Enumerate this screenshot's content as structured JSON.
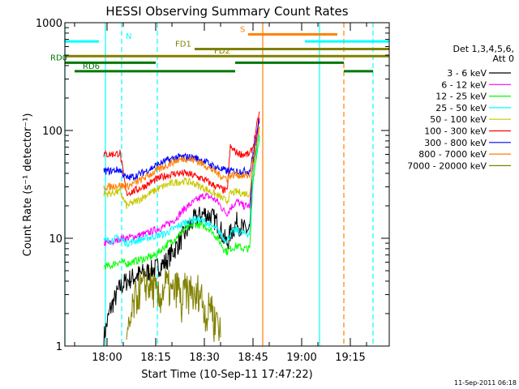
{
  "chart_data": {
    "type": "line",
    "title": "HESSI Observing Summary Count Rates",
    "xlabel": "Start Time (10-Sep-11 17:47:22)",
    "ylabel": "Count Rate (s⁻¹ detector⁻¹)",
    "y_scale": "log",
    "ylim": [
      1,
      1000
    ],
    "xlim_minutes_after_1747": [
      0,
      100
    ],
    "x_ticks": [
      "18:00",
      "18:15",
      "18:30",
      "18:45",
      "19:00",
      "19:15"
    ],
    "y_ticks": [
      "1",
      "10",
      "100",
      "1000"
    ],
    "grid": false,
    "legend_position": "right",
    "legend_header": [
      "Det 1,3,4,5,6,",
      "Att 0"
    ],
    "timestamp": "11-Sep-2011 06:18",
    "series": [
      {
        "name": "3 - 6 keV",
        "color": "#000000",
        "t": [
          12,
          14,
          16,
          17,
          19,
          22,
          25,
          28,
          31,
          34,
          37,
          40,
          43,
          45,
          47,
          48,
          49,
          50,
          51,
          53,
          55,
          57,
          58,
          60
        ],
        "y": [
          1.2,
          2.2,
          3,
          3.5,
          4,
          4.5,
          4.8,
          5.2,
          6,
          8,
          11,
          15,
          17,
          16,
          14,
          12,
          10,
          9,
          11,
          14,
          12,
          12,
          45,
          120
        ]
      },
      {
        "name": "6 - 12 keV",
        "color": "#ff00ff",
        "t": [
          12,
          14,
          16,
          17,
          19,
          22,
          25,
          28,
          31,
          34,
          37,
          40,
          43,
          45,
          47,
          48,
          49,
          50,
          51,
          53,
          55,
          57,
          58,
          60
        ],
        "y": [
          9,
          9,
          9.5,
          10,
          10,
          10.5,
          11,
          12,
          13,
          15,
          19,
          22,
          25,
          24,
          22,
          20,
          18,
          17,
          19,
          22,
          20,
          20,
          55,
          130
        ]
      },
      {
        "name": "12 - 25 keV",
        "color": "#00ff00",
        "t": [
          12,
          14,
          16,
          17,
          19,
          22,
          25,
          28,
          31,
          34,
          37,
          40,
          43,
          45,
          47,
          48,
          49,
          50,
          51,
          53,
          55,
          57,
          58,
          60
        ],
        "y": [
          5.5,
          5.5,
          6,
          6,
          5.8,
          6.2,
          6.5,
          7,
          8.5,
          10,
          12,
          13.5,
          13,
          12,
          10,
          9,
          8,
          7.5,
          8,
          8.5,
          8,
          8,
          35,
          90
        ]
      },
      {
        "name": "25 - 50 keV",
        "color": "#00ffff",
        "t": [
          12,
          14,
          16,
          17,
          19,
          22,
          25,
          28,
          31,
          34,
          37,
          40,
          43,
          45,
          47,
          48,
          49,
          50,
          51,
          53,
          55,
          57,
          58,
          60
        ],
        "y": [
          9.5,
          9.5,
          10,
          10,
          9,
          9.5,
          10,
          10.5,
          11,
          12.5,
          14,
          15,
          14.5,
          13,
          12,
          11,
          10,
          9.5,
          11,
          12,
          11,
          11,
          40,
          100
        ]
      },
      {
        "name": "50 - 100 keV",
        "color": "#c8c800",
        "t": [
          12,
          14,
          16,
          17,
          19,
          22,
          25,
          28,
          31,
          34,
          37,
          40,
          43,
          45,
          47,
          48,
          49,
          50,
          51,
          53,
          55,
          57,
          58,
          60
        ],
        "y": [
          26,
          26,
          27,
          27,
          20,
          22,
          25,
          28,
          31,
          33,
          34,
          32,
          29,
          27,
          25,
          24,
          23,
          22,
          26,
          27,
          26,
          26,
          45,
          110
        ]
      },
      {
        "name": "100 - 300 keV",
        "color": "#ff0000",
        "t": [
          12,
          14,
          16,
          17,
          19,
          22,
          25,
          28,
          31,
          34,
          37,
          40,
          43,
          45,
          47,
          48,
          49,
          50,
          51,
          53,
          55,
          57,
          58,
          60
        ],
        "y": [
          60,
          60,
          61,
          62,
          26,
          28,
          31,
          35,
          38,
          40,
          40,
          38,
          35,
          32,
          30,
          29,
          28,
          27,
          70,
          62,
          60,
          60,
          70,
          150
        ]
      },
      {
        "name": "300 - 800 keV",
        "color": "#0000ff",
        "t": [
          12,
          14,
          16,
          17,
          19,
          22,
          25,
          28,
          31,
          34,
          37,
          40,
          43,
          45,
          47,
          48,
          49,
          50,
          51,
          53,
          55,
          57,
          58,
          60
        ],
        "y": [
          42,
          42,
          43,
          43,
          36,
          38,
          42,
          47,
          52,
          56,
          57,
          56,
          52,
          48,
          45,
          44,
          43,
          42,
          42,
          42,
          42,
          42,
          60,
          120
        ]
      },
      {
        "name": "800 - 7000 keV",
        "color": "#ff8000",
        "t": [
          12,
          14,
          16,
          17,
          19,
          22,
          25,
          28,
          31,
          34,
          37,
          40,
          43,
          45,
          47,
          48,
          49,
          50,
          51,
          53,
          55,
          57,
          58,
          60
        ],
        "y": [
          30,
          30,
          31,
          31,
          30,
          33,
          37,
          42,
          47,
          52,
          55,
          53,
          48,
          44,
          40,
          38,
          37,
          36,
          38,
          39,
          38,
          38,
          55,
          110
        ]
      },
      {
        "name": "7000 - 20000 keV",
        "color": "#808000",
        "t": [
          19,
          20,
          21,
          22,
          23,
          25,
          27,
          29,
          31,
          33,
          35,
          36,
          37,
          38,
          39,
          40,
          41,
          42,
          43,
          44,
          45,
          46,
          47,
          48
        ],
        "y": [
          1,
          1.5,
          2.2,
          2.8,
          3.2,
          3.8,
          3.5,
          2.6,
          3.8,
          3,
          3.6,
          2.2,
          3.4,
          2.8,
          3.6,
          2.4,
          3.2,
          3,
          2.2,
          1.8,
          2.8,
          1.6,
          2,
          1.2
        ]
      }
    ],
    "flags": [
      {
        "label": "N",
        "color": "#00ffff",
        "t": [
          0,
          10.5
        ],
        "level": 670
      },
      {
        "label": "",
        "color": "#00ffff",
        "t": [
          74,
          100
        ],
        "level": 670
      },
      {
        "label": "S",
        "color": "#ff8000",
        "t": [
          56.5,
          84
        ],
        "level": 780
      },
      {
        "label": "FD1",
        "color": "#808000",
        "t": [
          40,
          100
        ],
        "level": 570
      },
      {
        "label": "FD2",
        "color": "#808000",
        "t": [
          0,
          100
        ],
        "level": 490
      },
      {
        "label": "RD0",
        "color": "#007800",
        "t": [
          0,
          28
        ],
        "level": 425
      },
      {
        "label": "",
        "color": "#007800",
        "t": [
          52.5,
          86
        ],
        "level": 425
      },
      {
        "label": "RD6",
        "color": "#007800",
        "t": [
          3,
          28
        ],
        "level": 355
      },
      {
        "label": "",
        "color": "#007800",
        "t": [
          28,
          52.5
        ],
        "level": 355
      },
      {
        "label": "",
        "color": "#007800",
        "t": [
          86,
          95
        ],
        "level": 355
      }
    ],
    "vertical_lines": [
      {
        "color": "#00ffff",
        "style": "solid",
        "t": 0
      },
      {
        "color": "#00ffff",
        "style": "solid",
        "t": 12.5
      },
      {
        "color": "#00ffff",
        "style": "dashed",
        "t": 17.5
      },
      {
        "color": "#00ffff",
        "style": "dashed",
        "t": 28.5
      },
      {
        "color": "#ff8000",
        "style": "solid",
        "t": 61
      },
      {
        "color": "#00ffff",
        "style": "solid",
        "t": 78.5
      },
      {
        "color": "#ff8000",
        "style": "dashed",
        "t": 86
      },
      {
        "color": "#00ffff",
        "style": "dashed",
        "t": 95
      }
    ]
  }
}
